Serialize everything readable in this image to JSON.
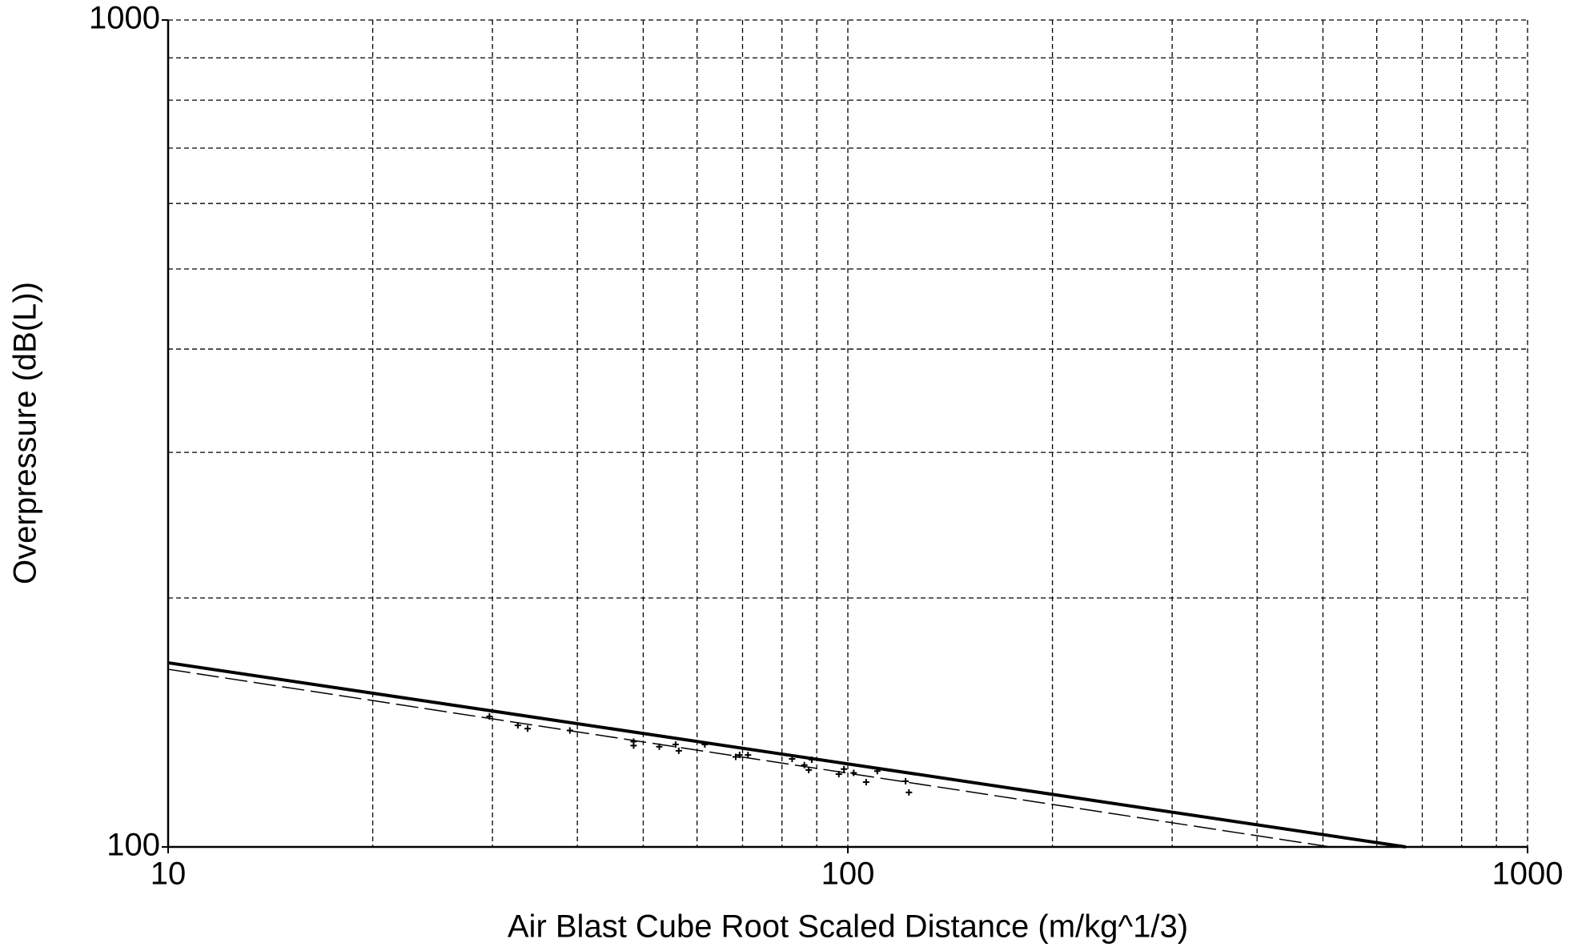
{
  "chart_data": {
    "type": "scatter",
    "xlabel": "Air Blast Cube Root Scaled Distance (m/kg^1/3)",
    "ylabel": "Overpressure (dB(L))",
    "xscale": "log",
    "yscale": "log",
    "grid": true,
    "xlim": [
      10,
      1000
    ],
    "ylim": [
      100,
      1000
    ],
    "xticks": [
      10,
      100,
      1000
    ],
    "yticks": [
      100,
      1000
    ],
    "xminorticks": [
      20,
      30,
      40,
      50,
      60,
      70,
      80,
      90,
      200,
      300,
      400,
      500,
      600,
      700,
      800,
      900
    ],
    "yminorticks": [
      200,
      300,
      400,
      500,
      600,
      700,
      800,
      900
    ],
    "lines": [
      {
        "color": "#000000",
        "style": "solid",
        "x": [
          10,
          662
        ],
        "values": [
          167,
          100
        ]
      },
      {
        "color": "#000000",
        "style": "dashed",
        "x": [
          10,
          513
        ],
        "values": [
          164,
          100
        ]
      }
    ],
    "points": {
      "color": "#000000",
      "marker": "+",
      "x": [
        29.7,
        32.7,
        33.8,
        39.0,
        48.4,
        48.4,
        52.8,
        55.8,
        56.4,
        61.6,
        68.4,
        69.3,
        71.3,
        82.8,
        86.3,
        87.6,
        88.5,
        97.0,
        98.7,
        102,
        106.4,
        110.5,
        121.6,
        123
      ],
      "values": [
        143.8,
        140.3,
        139.0,
        138.3,
        134.1,
        132.6,
        132.2,
        133.0,
        130.7,
        133.0,
        128.5,
        129.2,
        129.2,
        127.8,
        125.6,
        123.9,
        127.5,
        122.5,
        124.2,
        122.9,
        119.8,
        123.5,
        120.1,
        116.4
      ]
    }
  }
}
